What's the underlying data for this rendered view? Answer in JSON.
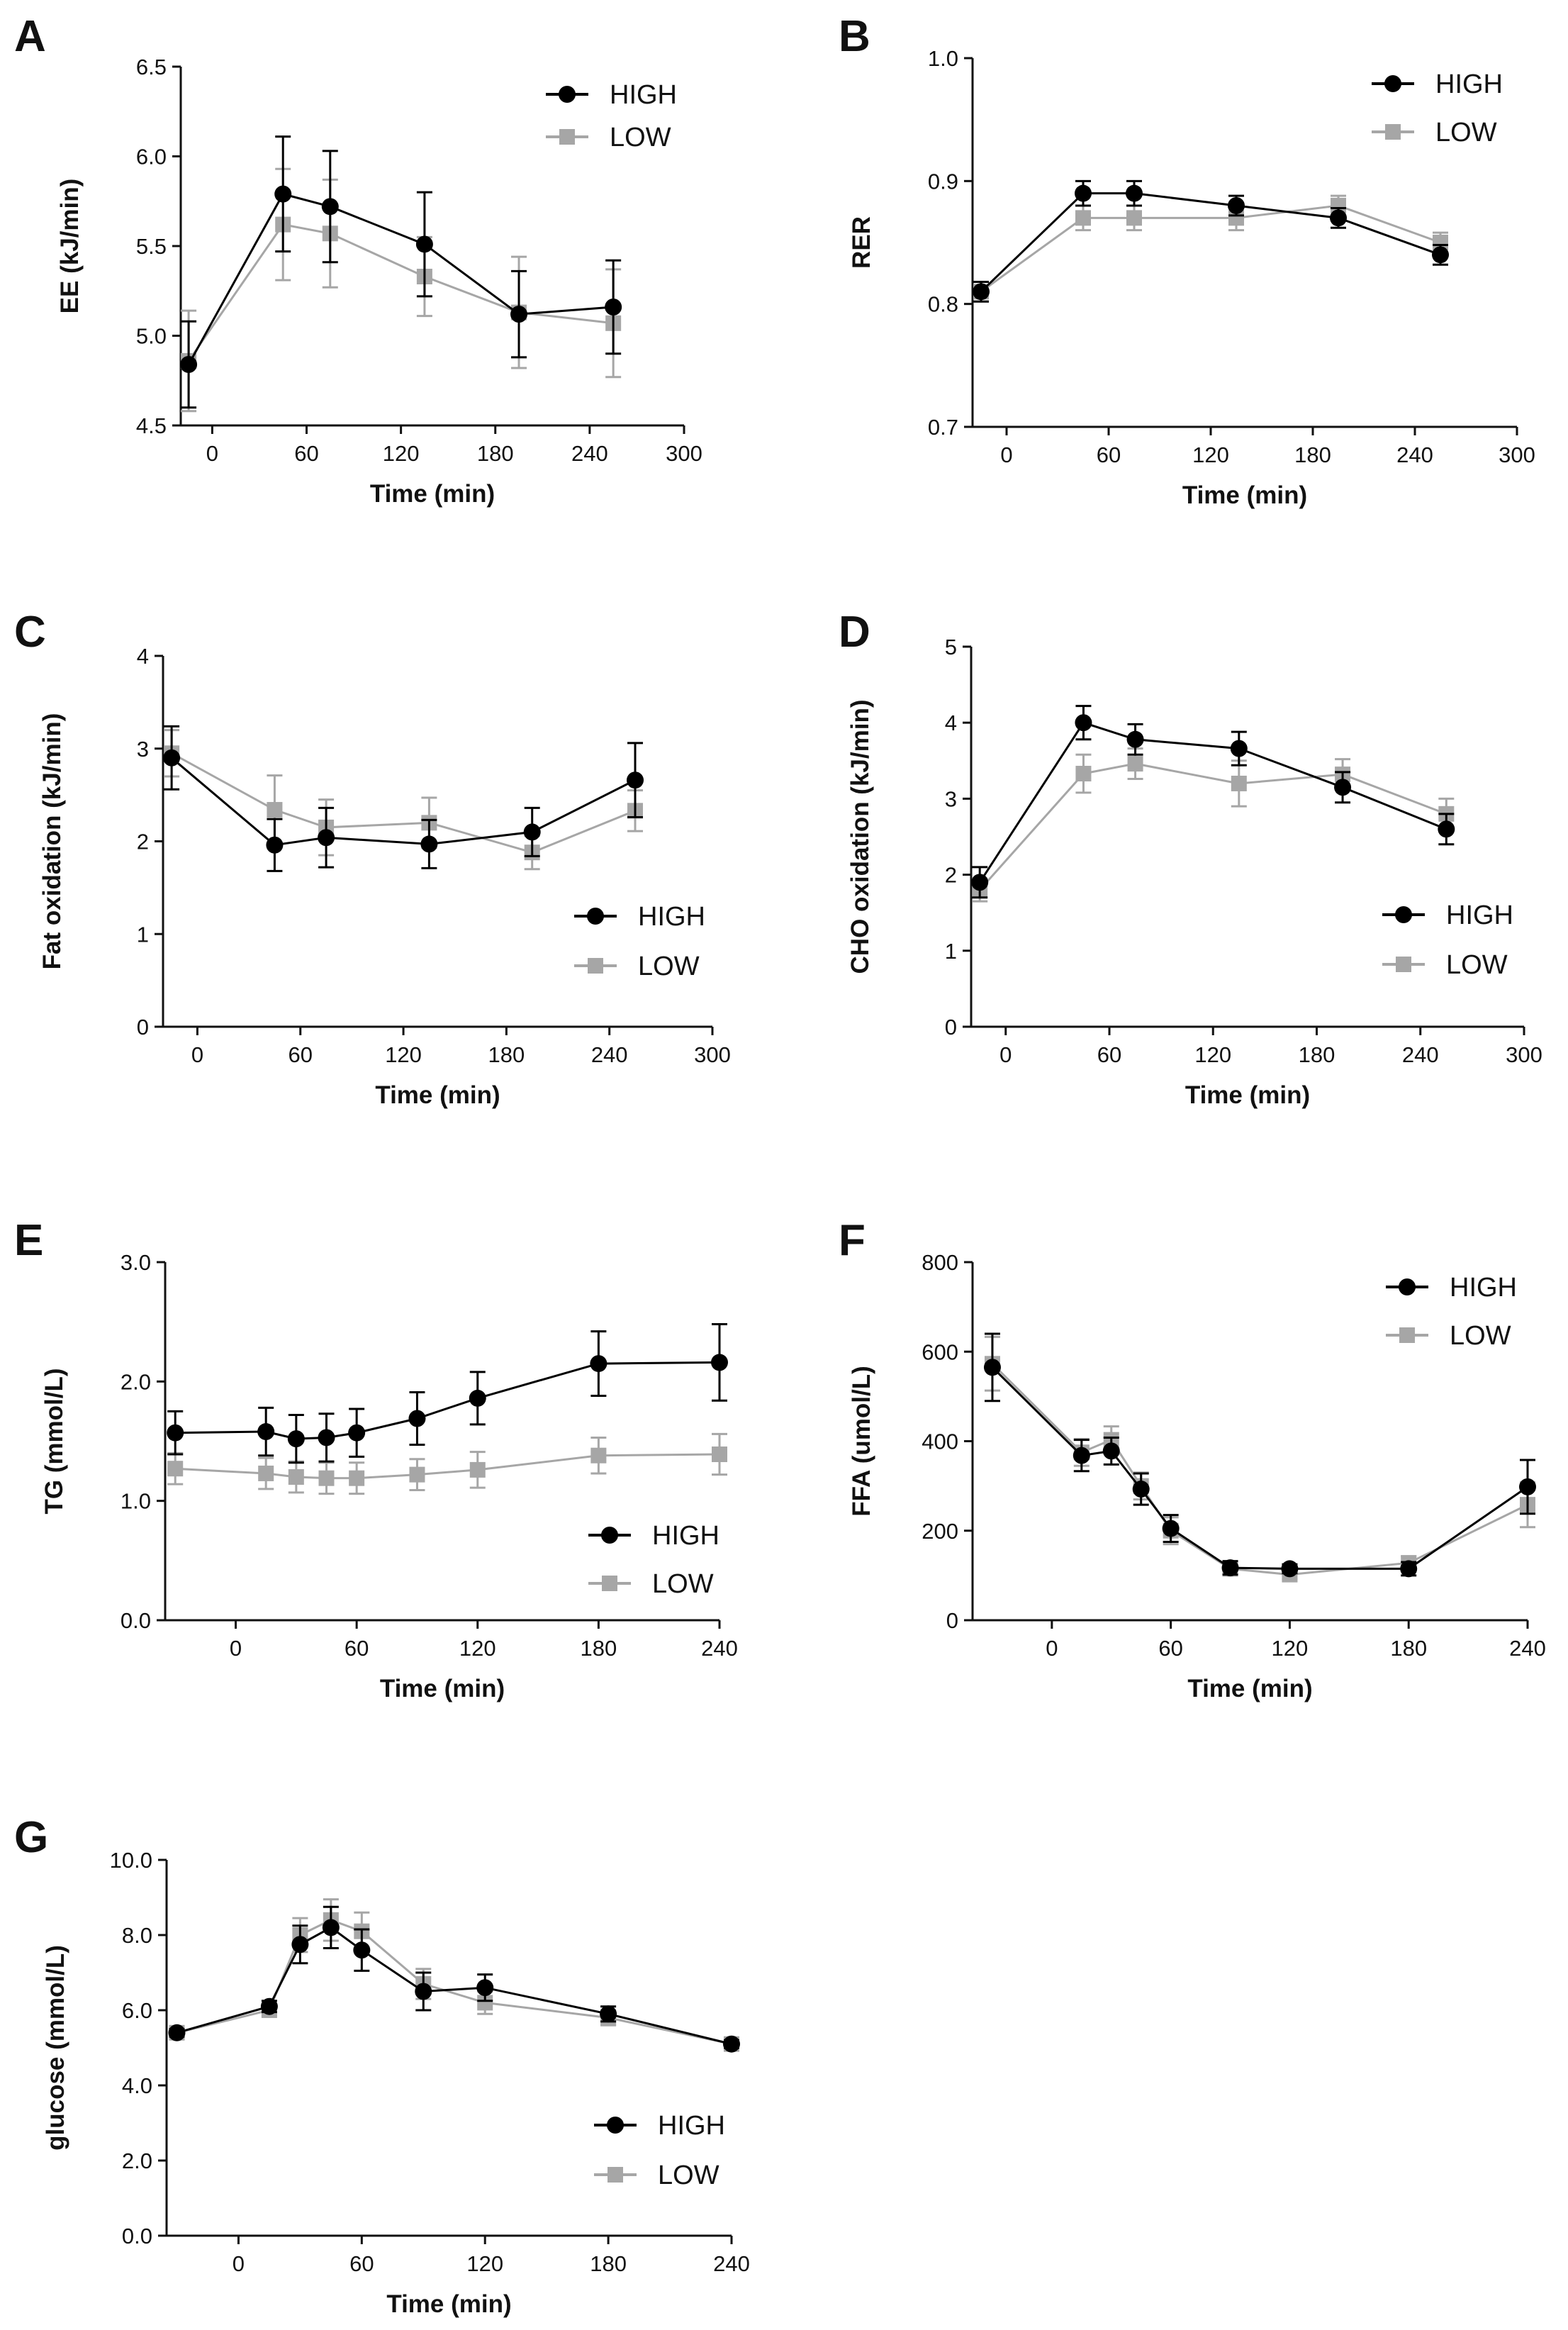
{
  "chart_data": [
    {
      "panel": "A",
      "type": "line",
      "title": "",
      "xlabel": "Time (min)",
      "ylabel": "EE (kJ/min)",
      "xlim": [
        -20,
        300
      ],
      "xticks": [
        0,
        60,
        120,
        180,
        240,
        300
      ],
      "ylim": [
        4.5,
        6.5
      ],
      "yticks": [
        "4.5",
        "5.0",
        "5.5",
        "6.0",
        "6.5"
      ],
      "legend": "top-right",
      "series": [
        {
          "name": "HIGH",
          "color": "#000000",
          "marker": "circle",
          "x": [
            -15,
            45,
            75,
            135,
            195,
            255
          ],
          "y": [
            4.84,
            5.79,
            5.72,
            5.51,
            5.12,
            5.16
          ],
          "err": [
            0.24,
            0.32,
            0.31,
            0.29,
            0.24,
            0.26
          ]
        },
        {
          "name": "LOW",
          "color": "#a6a6a6",
          "marker": "square",
          "x": [
            -15,
            45,
            75,
            135,
            195,
            255
          ],
          "y": [
            4.86,
            5.62,
            5.57,
            5.33,
            5.13,
            5.07
          ],
          "err": [
            0.28,
            0.31,
            0.3,
            0.22,
            0.31,
            0.3
          ]
        }
      ]
    },
    {
      "panel": "B",
      "type": "line",
      "title": "",
      "xlabel": "Time (min)",
      "ylabel": "RER",
      "xlim": [
        -20,
        300
      ],
      "xticks": [
        0,
        60,
        120,
        180,
        240,
        300
      ],
      "ylim": [
        0.7,
        1.0
      ],
      "yticks": [
        "0.7",
        "0.8",
        "0.9",
        "1.0"
      ],
      "legend": "top-right",
      "series": [
        {
          "name": "HIGH",
          "color": "#000000",
          "marker": "circle",
          "x": [
            -15,
            45,
            75,
            135,
            195,
            255
          ],
          "y": [
            0.81,
            0.89,
            0.89,
            0.88,
            0.87,
            0.84
          ],
          "err": [
            0.008,
            0.01,
            0.01,
            0.008,
            0.008,
            0.008
          ]
        },
        {
          "name": "LOW",
          "color": "#a6a6a6",
          "marker": "square",
          "x": [
            -15,
            45,
            75,
            135,
            195,
            255
          ],
          "y": [
            0.81,
            0.87,
            0.87,
            0.87,
            0.88,
            0.85
          ],
          "err": [
            0.008,
            0.01,
            0.01,
            0.01,
            0.008,
            0.008
          ]
        }
      ]
    },
    {
      "panel": "C",
      "type": "line",
      "title": "",
      "xlabel": "Time (min)",
      "ylabel": "Fat oxidation (kJ/min)",
      "xlim": [
        -20,
        300
      ],
      "xticks": [
        0,
        60,
        120,
        180,
        240,
        300
      ],
      "ylim": [
        0,
        4
      ],
      "yticks": [
        "0",
        "1",
        "2",
        "3",
        "4"
      ],
      "legend": "bottom-right",
      "series": [
        {
          "name": "HIGH",
          "color": "#000000",
          "marker": "circle",
          "x": [
            -15,
            45,
            75,
            135,
            195,
            255
          ],
          "y": [
            2.9,
            1.96,
            2.04,
            1.97,
            2.1,
            2.66
          ],
          "err": [
            0.34,
            0.28,
            0.32,
            0.26,
            0.26,
            0.4
          ]
        },
        {
          "name": "LOW",
          "color": "#a6a6a6",
          "marker": "square",
          "x": [
            -15,
            45,
            75,
            135,
            195,
            255
          ],
          "y": [
            2.95,
            2.34,
            2.15,
            2.2,
            1.88,
            2.33
          ],
          "err": [
            0.25,
            0.37,
            0.3,
            0.27,
            0.18,
            0.22
          ]
        }
      ]
    },
    {
      "panel": "D",
      "type": "line",
      "title": "",
      "xlabel": "Time (min)",
      "ylabel": "CHO oxidation (kJ/min)",
      "xlim": [
        -20,
        300
      ],
      "xticks": [
        0,
        60,
        120,
        180,
        240,
        300
      ],
      "ylim": [
        0,
        5
      ],
      "yticks": [
        "0",
        "1",
        "2",
        "3",
        "4",
        "5"
      ],
      "legend": "bottom-right",
      "series": [
        {
          "name": "HIGH",
          "color": "#000000",
          "marker": "circle",
          "x": [
            -15,
            45,
            75,
            135,
            195,
            255
          ],
          "y": [
            1.9,
            4.0,
            3.78,
            3.66,
            3.15,
            2.6
          ],
          "err": [
            0.2,
            0.22,
            0.2,
            0.22,
            0.2,
            0.2
          ]
        },
        {
          "name": "LOW",
          "color": "#a6a6a6",
          "marker": "square",
          "x": [
            -15,
            45,
            75,
            135,
            195,
            255
          ],
          "y": [
            1.8,
            3.33,
            3.46,
            3.2,
            3.32,
            2.8
          ],
          "err": [
            0.15,
            0.25,
            0.2,
            0.3,
            0.2,
            0.2
          ]
        }
      ]
    },
    {
      "panel": "E",
      "type": "line",
      "title": "",
      "xlabel": "Time (min)",
      "ylabel": "TG (mmol/L)",
      "xlim": [
        -35,
        240
      ],
      "xticks": [
        0,
        60,
        120,
        180,
        240
      ],
      "ylim": [
        0,
        3
      ],
      "yticks": [
        "0.0",
        "1.0",
        "2.0",
        "3.0"
      ],
      "legend": "bottom-right",
      "series": [
        {
          "name": "HIGH",
          "color": "#000000",
          "marker": "circle",
          "x": [
            -30,
            15,
            30,
            45,
            60,
            90,
            120,
            180,
            240
          ],
          "y": [
            1.57,
            1.58,
            1.52,
            1.53,
            1.57,
            1.69,
            1.86,
            2.15,
            2.16
          ],
          "err": [
            0.18,
            0.2,
            0.2,
            0.2,
            0.2,
            0.22,
            0.22,
            0.27,
            0.32
          ]
        },
        {
          "name": "LOW",
          "color": "#a6a6a6",
          "marker": "square",
          "x": [
            -30,
            15,
            30,
            45,
            60,
            90,
            120,
            180,
            240
          ],
          "y": [
            1.27,
            1.23,
            1.2,
            1.19,
            1.19,
            1.22,
            1.26,
            1.38,
            1.39
          ],
          "err": [
            0.13,
            0.13,
            0.13,
            0.13,
            0.13,
            0.13,
            0.15,
            0.15,
            0.17
          ]
        }
      ]
    },
    {
      "panel": "F",
      "type": "line",
      "title": "",
      "xlabel": "Time (min)",
      "ylabel": "FFA (umol/L)",
      "xlim": [
        -40,
        240
      ],
      "xticks": [
        0,
        60,
        120,
        180,
        240
      ],
      "ylim": [
        0,
        800
      ],
      "yticks": [
        "0",
        "200",
        "400",
        "600",
        "800"
      ],
      "legend": "top-right",
      "series": [
        {
          "name": "HIGH",
          "color": "#000000",
          "marker": "circle",
          "x": [
            -30,
            15,
            30,
            45,
            60,
            90,
            120,
            180,
            240
          ],
          "y": [
            565,
            368,
            378,
            293,
            205,
            117,
            115,
            115,
            298
          ],
          "err": [
            75,
            35,
            30,
            35,
            30,
            15,
            10,
            15,
            60
          ]
        },
        {
          "name": "LOW",
          "color": "#a6a6a6",
          "marker": "square",
          "x": [
            -30,
            15,
            30,
            45,
            60,
            90,
            120,
            180,
            240
          ],
          "y": [
            573,
            375,
            403,
            300,
            200,
            115,
            102,
            128,
            258
          ],
          "err": [
            60,
            30,
            30,
            30,
            30,
            15,
            10,
            15,
            50
          ]
        }
      ]
    },
    {
      "panel": "G",
      "type": "line",
      "title": "",
      "xlabel": "Time (min)",
      "ylabel": "glucose (mmol/L)",
      "xlim": [
        -35,
        240
      ],
      "xticks": [
        0,
        60,
        120,
        180,
        240
      ],
      "ylim": [
        0,
        10
      ],
      "yticks": [
        "0.0",
        "2.0",
        "4.0",
        "6.0",
        "8.0",
        "10.0"
      ],
      "legend": "bottom-right",
      "series": [
        {
          "name": "HIGH",
          "color": "#000000",
          "marker": "circle",
          "x": [
            -30,
            15,
            30,
            45,
            60,
            90,
            120,
            180,
            240
          ],
          "y": [
            5.4,
            6.1,
            7.75,
            8.2,
            7.6,
            6.5,
            6.6,
            5.9,
            5.1
          ],
          "err": [
            0.1,
            0.15,
            0.5,
            0.55,
            0.55,
            0.5,
            0.35,
            0.2,
            0.1
          ]
        },
        {
          "name": "LOW",
          "color": "#a6a6a6",
          "marker": "square",
          "x": [
            -30,
            15,
            30,
            45,
            60,
            90,
            120,
            180,
            240
          ],
          "y": [
            5.4,
            6.0,
            8.0,
            8.4,
            8.1,
            6.7,
            6.2,
            5.8,
            5.1
          ],
          "err": [
            0.1,
            0.15,
            0.45,
            0.55,
            0.5,
            0.4,
            0.3,
            0.2,
            0.1
          ]
        }
      ]
    }
  ]
}
